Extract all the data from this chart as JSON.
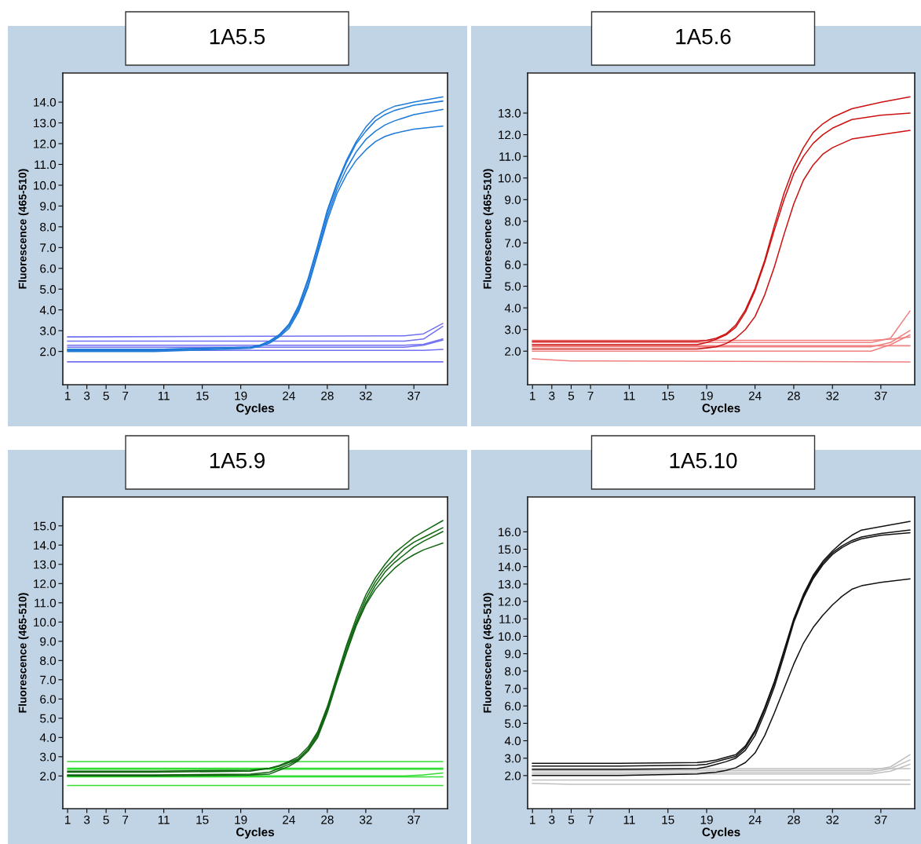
{
  "chart_data": [
    {
      "type": "line",
      "title": "1A5.5",
      "xlabel": "Cycles",
      "ylabel": "Fluorescence (465-510)",
      "xlim": [
        0.5,
        40.5
      ],
      "ylim": [
        0.4,
        15.4
      ],
      "xticks": [
        1,
        3,
        5,
        7,
        11,
        15,
        19,
        24,
        28,
        32,
        37
      ],
      "yticks": [
        {
          "value": 2,
          "label": "2.0"
        },
        {
          "value": 3,
          "label": "3.0"
        },
        {
          "value": 4,
          "label": "4.0"
        },
        {
          "value": 5,
          "label": "5.0"
        },
        {
          "value": 6,
          "label": "6.0"
        },
        {
          "value": 7,
          "label": "7.0"
        },
        {
          "value": 8,
          "label": "8.0"
        },
        {
          "value": 9,
          "label": "9.0"
        },
        {
          "value": 10,
          "label": "10.0"
        },
        {
          "value": 11,
          "label": "11.0"
        },
        {
          "value": 12,
          "label": "12.0"
        },
        {
          "value": 13,
          "label": "13.0"
        },
        {
          "value": 14,
          "label": "14.0"
        }
      ],
      "series": [
        {
          "color": "#7070f0",
          "x": [
            1,
            36,
            38,
            40
          ],
          "values": [
            2.7,
            2.75,
            2.85,
            3.35
          ]
        },
        {
          "color": "#7070f0",
          "x": [
            1,
            36,
            38,
            40
          ],
          "values": [
            2.5,
            2.5,
            2.6,
            3.2
          ]
        },
        {
          "color": "#7070f0",
          "x": [
            1,
            36,
            38,
            40
          ],
          "values": [
            2.3,
            2.3,
            2.35,
            2.6
          ]
        },
        {
          "color": "#7070f0",
          "x": [
            1,
            36,
            38,
            40
          ],
          "values": [
            2.2,
            2.2,
            2.3,
            2.55
          ]
        },
        {
          "color": "#7070f0",
          "x": [
            1,
            36,
            38,
            40
          ],
          "values": [
            2.05,
            2.05,
            2.05,
            2.1
          ]
        },
        {
          "color": "#7070f0",
          "x": [
            1,
            36,
            38,
            40
          ],
          "values": [
            1.5,
            1.5,
            1.5,
            1.5
          ]
        },
        {
          "color": "#1f7ad8",
          "x": [
            1,
            10,
            20,
            21,
            22,
            23,
            24,
            25,
            26,
            27,
            28,
            29,
            30,
            31,
            32,
            33,
            34,
            35,
            37,
            40
          ],
          "values": [
            2.1,
            2.1,
            2.2,
            2.3,
            2.5,
            2.8,
            3.3,
            4.2,
            5.5,
            7.1,
            8.8,
            10.1,
            11.2,
            12.1,
            12.8,
            13.3,
            13.6,
            13.8,
            14.0,
            14.25
          ]
        },
        {
          "color": "#1f7ad8",
          "x": [
            1,
            10,
            20,
            21,
            22,
            23,
            24,
            25,
            26,
            27,
            28,
            29,
            30,
            31,
            32,
            33,
            34,
            35,
            37,
            40
          ],
          "values": [
            2.05,
            2.05,
            2.2,
            2.3,
            2.5,
            2.8,
            3.3,
            4.1,
            5.4,
            7.0,
            8.7,
            10.0,
            11.1,
            12.0,
            12.6,
            13.1,
            13.4,
            13.6,
            13.85,
            14.05
          ]
        },
        {
          "color": "#1f7ad8",
          "x": [
            1,
            10,
            20,
            21,
            22,
            23,
            24,
            25,
            26,
            27,
            28,
            29,
            30,
            31,
            32,
            33,
            34,
            35,
            37,
            40
          ],
          "values": [
            2.1,
            2.1,
            2.2,
            2.3,
            2.45,
            2.75,
            3.2,
            4.0,
            5.2,
            6.8,
            8.5,
            9.8,
            10.8,
            11.6,
            12.2,
            12.6,
            12.9,
            13.1,
            13.4,
            13.65
          ]
        },
        {
          "color": "#1f7ad8",
          "x": [
            1,
            10,
            20,
            21,
            22,
            23,
            24,
            25,
            26,
            27,
            28,
            29,
            30,
            31,
            32,
            33,
            34,
            35,
            37,
            40
          ],
          "values": [
            2.0,
            2.0,
            2.15,
            2.25,
            2.4,
            2.7,
            3.1,
            3.9,
            5.1,
            6.7,
            8.3,
            9.6,
            10.5,
            11.2,
            11.7,
            12.1,
            12.35,
            12.5,
            12.7,
            12.85
          ]
        }
      ]
    },
    {
      "type": "line",
      "title": "1A5.6",
      "xlabel": "Cycles",
      "ylabel": "Fluorescence (465-510)",
      "xlim": [
        0.5,
        40.5
      ],
      "ylim": [
        0.45,
        14.85
      ],
      "xticks": [
        1,
        3,
        5,
        7,
        11,
        15,
        19,
        24,
        28,
        32,
        37
      ],
      "yticks": [
        {
          "value": 2,
          "label": "2.0"
        },
        {
          "value": 3,
          "label": "3.0"
        },
        {
          "value": 4,
          "label": "4.0"
        },
        {
          "value": 5,
          "label": "5.0"
        },
        {
          "value": 6,
          "label": "6.0"
        },
        {
          "value": 7,
          "label": "7.0"
        },
        {
          "value": 8,
          "label": "8.0"
        },
        {
          "value": 9,
          "label": "9.0"
        },
        {
          "value": 10,
          "label": "10.0"
        },
        {
          "value": 11,
          "label": "11.0"
        },
        {
          "value": 12,
          "label": "12.0"
        },
        {
          "value": 13,
          "label": "13.0"
        }
      ],
      "series": [
        {
          "color": "#f08080",
          "x": [
            1,
            36,
            38,
            40
          ],
          "values": [
            2.5,
            2.5,
            2.55,
            2.65
          ]
        },
        {
          "color": "#f08080",
          "x": [
            1,
            36,
            38,
            40
          ],
          "values": [
            2.4,
            2.4,
            2.6,
            3.85
          ]
        },
        {
          "color": "#f08080",
          "x": [
            1,
            36,
            38,
            40
          ],
          "values": [
            2.2,
            2.2,
            2.4,
            2.95
          ]
        },
        {
          "color": "#f08080",
          "x": [
            1,
            36,
            38,
            40
          ],
          "values": [
            2.0,
            2.0,
            2.3,
            2.75
          ]
        },
        {
          "color": "#f08080",
          "x": [
            1,
            36,
            38,
            40
          ],
          "values": [
            2.25,
            2.25,
            2.25,
            2.25
          ]
        },
        {
          "color": "#f08080",
          "x": [
            1,
            5,
            40
          ],
          "values": [
            1.65,
            1.55,
            1.5
          ]
        },
        {
          "color": "#cc1111",
          "x": [
            1,
            10,
            18,
            19,
            20,
            21,
            22,
            23,
            24,
            25,
            26,
            27,
            28,
            29,
            30,
            31,
            32,
            34,
            37,
            40
          ],
          "values": [
            2.45,
            2.45,
            2.45,
            2.5,
            2.6,
            2.8,
            3.2,
            3.9,
            4.9,
            6.2,
            7.8,
            9.3,
            10.5,
            11.4,
            12.1,
            12.5,
            12.8,
            13.2,
            13.5,
            13.75
          ]
        },
        {
          "color": "#cc1111",
          "x": [
            1,
            10,
            18,
            19,
            20,
            21,
            22,
            23,
            24,
            25,
            26,
            27,
            28,
            29,
            30,
            31,
            32,
            34,
            37,
            40
          ],
          "values": [
            2.3,
            2.3,
            2.3,
            2.4,
            2.55,
            2.75,
            3.1,
            3.8,
            4.8,
            6.1,
            7.6,
            9.0,
            10.2,
            11.0,
            11.6,
            12.0,
            12.3,
            12.7,
            12.9,
            13.0
          ]
        },
        {
          "color": "#cc1111",
          "x": [
            1,
            10,
            18,
            19,
            20,
            21,
            22,
            23,
            24,
            25,
            26,
            27,
            28,
            29,
            30,
            31,
            32,
            34,
            37,
            40
          ],
          "values": [
            2.1,
            2.1,
            2.1,
            2.15,
            2.2,
            2.35,
            2.6,
            3.0,
            3.6,
            4.6,
            5.9,
            7.4,
            8.8,
            9.9,
            10.6,
            11.1,
            11.4,
            11.8,
            12.0,
            12.2
          ]
        }
      ]
    },
    {
      "type": "line",
      "title": "1A5.9",
      "xlabel": "Cycles",
      "ylabel": "Fluorescence (465-510)",
      "xlim": [
        0.5,
        40.5
      ],
      "ylim": [
        0.3,
        16.5
      ],
      "xticks": [
        1,
        3,
        5,
        7,
        11,
        15,
        19,
        24,
        28,
        32,
        37
      ],
      "yticks": [
        {
          "value": 2,
          "label": "2.0"
        },
        {
          "value": 3,
          "label": "3.0"
        },
        {
          "value": 4,
          "label": "4.0"
        },
        {
          "value": 5,
          "label": "5.0"
        },
        {
          "value": 6,
          "label": "6.0"
        },
        {
          "value": 7,
          "label": "7.0"
        },
        {
          "value": 8,
          "label": "8.0"
        },
        {
          "value": 9,
          "label": "9.0"
        },
        {
          "value": 10,
          "label": "10.0"
        },
        {
          "value": 11,
          "label": "11.0"
        },
        {
          "value": 12,
          "label": "12.0"
        },
        {
          "value": 13,
          "label": "13.0"
        },
        {
          "value": 14,
          "label": "14.0"
        },
        {
          "value": 15,
          "label": "15.0"
        }
      ],
      "series": [
        {
          "color": "#33dd33",
          "x": [
            1,
            36,
            38,
            40
          ],
          "values": [
            2.75,
            2.75,
            2.75,
            2.75
          ]
        },
        {
          "color": "#33dd33",
          "x": [
            1,
            36,
            38,
            40
          ],
          "values": [
            2.4,
            2.4,
            2.4,
            2.4
          ]
        },
        {
          "color": "#33dd33",
          "x": [
            1,
            36,
            38,
            40
          ],
          "values": [
            2.35,
            2.35,
            2.35,
            2.35
          ]
        },
        {
          "color": "#33dd33",
          "x": [
            1,
            36,
            38,
            40
          ],
          "values": [
            2.0,
            2.0,
            2.05,
            2.15
          ]
        },
        {
          "color": "#33dd33",
          "x": [
            1,
            36,
            38,
            40
          ],
          "values": [
            1.95,
            1.95,
            1.95,
            1.95
          ]
        },
        {
          "color": "#33dd33",
          "x": [
            1,
            36,
            38,
            40
          ],
          "values": [
            1.5,
            1.5,
            1.5,
            1.5
          ]
        },
        {
          "color": "#116611",
          "x": [
            1,
            10,
            20,
            22,
            23,
            24,
            25,
            26,
            27,
            28,
            29,
            30,
            31,
            32,
            33,
            34,
            35,
            36,
            37,
            38,
            40
          ],
          "values": [
            2.2,
            2.2,
            2.25,
            2.4,
            2.55,
            2.75,
            3.0,
            3.5,
            4.3,
            5.6,
            7.2,
            8.8,
            10.2,
            11.4,
            12.3,
            13.0,
            13.6,
            14.0,
            14.4,
            14.7,
            15.27
          ]
        },
        {
          "color": "#116611",
          "x": [
            1,
            10,
            20,
            22,
            23,
            24,
            25,
            26,
            27,
            28,
            29,
            30,
            31,
            32,
            33,
            34,
            35,
            36,
            37,
            38,
            40
          ],
          "values": [
            2.25,
            2.25,
            2.3,
            2.4,
            2.5,
            2.7,
            2.9,
            3.4,
            4.2,
            5.5,
            7.1,
            8.7,
            10.0,
            11.2,
            12.1,
            12.8,
            13.3,
            13.8,
            14.15,
            14.4,
            14.9
          ]
        },
        {
          "color": "#116611",
          "x": [
            1,
            10,
            20,
            22,
            23,
            24,
            25,
            26,
            27,
            28,
            29,
            30,
            31,
            32,
            33,
            34,
            35,
            36,
            37,
            38,
            40
          ],
          "values": [
            2.05,
            2.05,
            2.1,
            2.2,
            2.4,
            2.6,
            2.85,
            3.3,
            4.1,
            5.4,
            7.0,
            8.5,
            9.9,
            11.0,
            11.9,
            12.6,
            13.1,
            13.5,
            13.9,
            14.2,
            14.7
          ]
        },
        {
          "color": "#116611",
          "x": [
            1,
            10,
            20,
            22,
            23,
            24,
            25,
            26,
            27,
            28,
            29,
            30,
            31,
            32,
            33,
            34,
            35,
            36,
            37,
            38,
            40
          ],
          "values": [
            2.0,
            2.0,
            2.05,
            2.1,
            2.3,
            2.5,
            2.8,
            3.3,
            4.0,
            5.3,
            6.9,
            8.4,
            9.8,
            10.9,
            11.7,
            12.3,
            12.8,
            13.2,
            13.5,
            13.75,
            14.1
          ]
        }
      ]
    },
    {
      "type": "line",
      "title": "1A5.10",
      "xlabel": "Cycles",
      "ylabel": "Fluorescence (465-510)",
      "xlim": [
        0.5,
        40.5
      ],
      "ylim": [
        0.1,
        18.0
      ],
      "xticks": [
        1,
        3,
        5,
        7,
        11,
        15,
        19,
        24,
        28,
        32,
        37
      ],
      "yticks": [
        {
          "value": 2,
          "label": "2.0"
        },
        {
          "value": 3,
          "label": "3.0"
        },
        {
          "value": 4,
          "label": "4.0"
        },
        {
          "value": 5,
          "label": "5.0"
        },
        {
          "value": 6,
          "label": "6.0"
        },
        {
          "value": 7,
          "label": "7.0"
        },
        {
          "value": 8,
          "label": "8.0"
        },
        {
          "value": 9,
          "label": "9.0"
        },
        {
          "value": 10,
          "label": "10.0"
        },
        {
          "value": 11,
          "label": "11.0"
        },
        {
          "value": 12,
          "label": "12.0"
        },
        {
          "value": 13,
          "label": "13.0"
        },
        {
          "value": 14,
          "label": "14.0"
        },
        {
          "value": 15,
          "label": "15.0"
        },
        {
          "value": 16,
          "label": "16.0"
        }
      ],
      "series": [
        {
          "color": "#c0c0c0",
          "x": [
            1,
            36,
            38,
            40
          ],
          "values": [
            2.4,
            2.4,
            2.4,
            2.4
          ]
        },
        {
          "color": "#c0c0c0",
          "x": [
            1,
            36,
            38,
            40
          ],
          "values": [
            2.3,
            2.3,
            2.5,
            3.2
          ]
        },
        {
          "color": "#c0c0c0",
          "x": [
            1,
            36,
            38,
            40
          ],
          "values": [
            2.2,
            2.2,
            2.4,
            2.9
          ]
        },
        {
          "color": "#c0c0c0",
          "x": [
            1,
            36,
            38,
            40
          ],
          "values": [
            2.1,
            2.1,
            2.25,
            2.65
          ]
        },
        {
          "color": "#c0c0c0",
          "x": [
            1,
            36,
            38,
            40
          ],
          "values": [
            1.75,
            1.75,
            1.75,
            1.75
          ]
        },
        {
          "color": "#c0c0c0",
          "x": [
            1,
            5,
            40
          ],
          "values": [
            1.55,
            1.5,
            1.5
          ]
        },
        {
          "color": "#111111",
          "x": [
            1,
            10,
            18,
            19,
            20,
            21,
            22,
            23,
            24,
            25,
            26,
            27,
            28,
            29,
            30,
            31,
            32,
            33,
            34,
            35,
            37,
            40
          ],
          "values": [
            2.7,
            2.7,
            2.75,
            2.8,
            2.9,
            3.05,
            3.2,
            3.7,
            4.6,
            5.9,
            7.4,
            9.2,
            11.0,
            12.4,
            13.5,
            14.3,
            14.9,
            15.4,
            15.8,
            16.1,
            16.3,
            16.6
          ]
        },
        {
          "color": "#111111",
          "x": [
            1,
            10,
            18,
            19,
            20,
            21,
            22,
            23,
            24,
            25,
            26,
            27,
            28,
            29,
            30,
            31,
            32,
            33,
            34,
            35,
            37,
            40
          ],
          "values": [
            2.55,
            2.55,
            2.6,
            2.65,
            2.8,
            2.95,
            3.1,
            3.6,
            4.5,
            5.8,
            7.3,
            9.1,
            10.9,
            12.3,
            13.4,
            14.2,
            14.8,
            15.2,
            15.5,
            15.7,
            15.9,
            16.1
          ]
        },
        {
          "color": "#111111",
          "x": [
            1,
            10,
            18,
            19,
            20,
            21,
            22,
            23,
            24,
            25,
            26,
            27,
            28,
            29,
            30,
            31,
            32,
            33,
            34,
            35,
            37,
            40
          ],
          "values": [
            2.35,
            2.35,
            2.4,
            2.5,
            2.65,
            2.8,
            3.0,
            3.45,
            4.3,
            5.6,
            7.1,
            8.9,
            10.8,
            12.2,
            13.3,
            14.1,
            14.7,
            15.1,
            15.4,
            15.6,
            15.8,
            15.95
          ]
        },
        {
          "color": "#111111",
          "x": [
            1,
            10,
            18,
            19,
            20,
            21,
            22,
            23,
            24,
            25,
            26,
            27,
            28,
            29,
            30,
            31,
            32,
            33,
            34,
            35,
            37,
            40
          ],
          "values": [
            2.0,
            2.0,
            2.1,
            2.15,
            2.2,
            2.3,
            2.45,
            2.75,
            3.3,
            4.3,
            5.6,
            7.0,
            8.4,
            9.6,
            10.5,
            11.2,
            11.8,
            12.3,
            12.7,
            12.9,
            13.1,
            13.3
          ]
        }
      ]
    }
  ]
}
